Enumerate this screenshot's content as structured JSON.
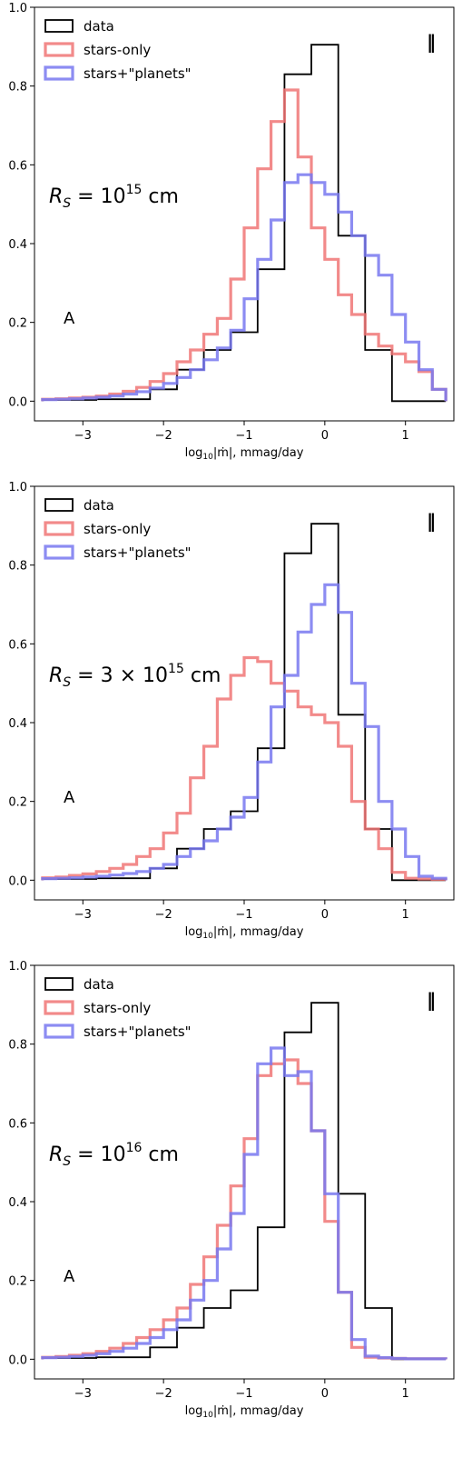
{
  "chart_data": [
    {
      "type": "histogram",
      "panel_marker": "‖",
      "annotation": {
        "base": "R",
        "sub": "S",
        "text": " = 10",
        "sup": "15",
        "unit": " cm"
      },
      "letter": "A",
      "xlabel": {
        "pre": "log",
        "sub": "10",
        "post": "|ṁ|, mmag/day"
      },
      "xlim": [
        -3.6,
        1.6
      ],
      "ylim": [
        -0.05,
        1.0
      ],
      "xticks": [
        {
          "v": -3,
          "label": "−3"
        },
        {
          "v": -2,
          "label": "−2"
        },
        {
          "v": -1,
          "label": "−1"
        },
        {
          "v": 0,
          "label": "0"
        },
        {
          "v": 1,
          "label": "1"
        }
      ],
      "yticks": [
        {
          "v": 0,
          "label": "0.0"
        },
        {
          "v": 0.2,
          "label": "0.2"
        },
        {
          "v": 0.4,
          "label": "0.4"
        },
        {
          "v": 0.6,
          "label": "0.6"
        },
        {
          "v": 0.8,
          "label": "0.8"
        },
        {
          "v": 1.0,
          "label": "1.0"
        }
      ],
      "legend_position": "top-left",
      "bin_edges": [
        -3.5,
        -2.833,
        -2.167,
        -1.833,
        -1.5,
        -1.167,
        -0.833,
        -0.5,
        -0.167,
        0.167,
        0.5,
        0.833,
        1.5
      ],
      "series": [
        {
          "name": "data",
          "color": "#000000",
          "edges": [
            -3.5,
            -2.833,
            -2.167,
            -1.833,
            -1.5,
            -1.167,
            -0.833,
            -0.5,
            -0.167,
            0.167,
            0.5,
            0.833,
            1.5
          ],
          "values": [
            0.003,
            0.005,
            0.03,
            0.08,
            0.13,
            0.175,
            0.335,
            0.83,
            0.905,
            0.42,
            0.13,
            0.0
          ]
        },
        {
          "name": "stars-only",
          "color": "#f07575",
          "edges": [
            -3.5,
            -3.333,
            -3.167,
            -3.0,
            -2.833,
            -2.667,
            -2.5,
            -2.333,
            -2.167,
            -2.0,
            -1.833,
            -1.667,
            -1.5,
            -1.333,
            -1.167,
            -1.0,
            -0.833,
            -0.667,
            -0.5,
            -0.333,
            -0.167,
            0.0,
            0.167,
            0.333,
            0.5,
            0.667,
            0.833,
            1.0,
            1.167,
            1.333,
            1.5
          ],
          "values": [
            0.005,
            0.006,
            0.008,
            0.01,
            0.013,
            0.018,
            0.025,
            0.035,
            0.05,
            0.07,
            0.1,
            0.13,
            0.17,
            0.21,
            0.31,
            0.44,
            0.59,
            0.71,
            0.79,
            0.62,
            0.44,
            0.36,
            0.27,
            0.22,
            0.17,
            0.14,
            0.12,
            0.1,
            0.075,
            0.03
          ]
        },
        {
          "name": "stars+\"planets\"",
          "color": "#7878f0",
          "edges": [
            -3.5,
            -3.333,
            -3.167,
            -3.0,
            -2.833,
            -2.667,
            -2.5,
            -2.333,
            -2.167,
            -2.0,
            -1.833,
            -1.667,
            -1.5,
            -1.333,
            -1.167,
            -1.0,
            -0.833,
            -0.667,
            -0.5,
            -0.333,
            -0.167,
            0.0,
            0.167,
            0.333,
            0.5,
            0.667,
            0.833,
            1.0,
            1.167,
            1.333,
            1.5
          ],
          "values": [
            0.004,
            0.005,
            0.006,
            0.008,
            0.01,
            0.013,
            0.018,
            0.024,
            0.033,
            0.045,
            0.06,
            0.08,
            0.105,
            0.135,
            0.18,
            0.26,
            0.36,
            0.46,
            0.555,
            0.575,
            0.555,
            0.525,
            0.48,
            0.42,
            0.37,
            0.32,
            0.22,
            0.15,
            0.08,
            0.03
          ]
        }
      ]
    },
    {
      "type": "histogram",
      "panel_marker": "‖",
      "annotation": {
        "base": "R",
        "sub": "S",
        "text": " = 3 × 10",
        "sup": "15",
        "unit": " cm"
      },
      "letter": "A",
      "xlabel": {
        "pre": "log",
        "sub": "10",
        "post": "|ṁ|, mmag/day"
      },
      "xlim": [
        -3.6,
        1.6
      ],
      "ylim": [
        -0.05,
        1.0
      ],
      "xticks": [
        {
          "v": -3,
          "label": "−3"
        },
        {
          "v": -2,
          "label": "−2"
        },
        {
          "v": -1,
          "label": "−1"
        },
        {
          "v": 0,
          "label": "0"
        },
        {
          "v": 1,
          "label": "1"
        }
      ],
      "yticks": [
        {
          "v": 0,
          "label": "0.0"
        },
        {
          "v": 0.2,
          "label": "0.2"
        },
        {
          "v": 0.4,
          "label": "0.4"
        },
        {
          "v": 0.6,
          "label": "0.6"
        },
        {
          "v": 0.8,
          "label": "0.8"
        },
        {
          "v": 1.0,
          "label": "1.0"
        }
      ],
      "legend_position": "top-left",
      "series": [
        {
          "name": "data",
          "color": "#000000",
          "edges": [
            -3.5,
            -2.833,
            -2.167,
            -1.833,
            -1.5,
            -1.167,
            -0.833,
            -0.5,
            -0.167,
            0.167,
            0.5,
            0.833,
            1.5
          ],
          "values": [
            0.003,
            0.005,
            0.03,
            0.08,
            0.13,
            0.175,
            0.335,
            0.83,
            0.905,
            0.42,
            0.13,
            0.0
          ]
        },
        {
          "name": "stars-only",
          "color": "#f07575",
          "edges": [
            -3.5,
            -3.333,
            -3.167,
            -3.0,
            -2.833,
            -2.667,
            -2.5,
            -2.333,
            -2.167,
            -2.0,
            -1.833,
            -1.667,
            -1.5,
            -1.333,
            -1.167,
            -1.0,
            -0.833,
            -0.667,
            -0.5,
            -0.333,
            -0.167,
            0.0,
            0.167,
            0.333,
            0.5,
            0.667,
            0.833,
            1.0,
            1.167,
            1.333,
            1.5
          ],
          "values": [
            0.006,
            0.008,
            0.012,
            0.016,
            0.022,
            0.03,
            0.04,
            0.06,
            0.08,
            0.12,
            0.17,
            0.26,
            0.34,
            0.46,
            0.52,
            0.565,
            0.555,
            0.5,
            0.48,
            0.44,
            0.42,
            0.4,
            0.34,
            0.2,
            0.13,
            0.08,
            0.02,
            0.005,
            0.003,
            0.002
          ]
        },
        {
          "name": "stars+\"planets\"",
          "color": "#7878f0",
          "edges": [
            -3.5,
            -3.333,
            -3.167,
            -3.0,
            -2.833,
            -2.667,
            -2.5,
            -2.333,
            -2.167,
            -2.0,
            -1.833,
            -1.667,
            -1.5,
            -1.333,
            -1.167,
            -1.0,
            -0.833,
            -0.667,
            -0.5,
            -0.333,
            -0.167,
            0.0,
            0.167,
            0.333,
            0.5,
            0.667,
            0.833,
            1.0,
            1.167,
            1.333,
            1.5
          ],
          "values": [
            0.004,
            0.005,
            0.006,
            0.008,
            0.01,
            0.013,
            0.017,
            0.022,
            0.03,
            0.04,
            0.06,
            0.08,
            0.1,
            0.13,
            0.16,
            0.21,
            0.3,
            0.44,
            0.52,
            0.63,
            0.7,
            0.75,
            0.68,
            0.5,
            0.39,
            0.2,
            0.13,
            0.06,
            0.01,
            0.005
          ]
        }
      ]
    },
    {
      "type": "histogram",
      "panel_marker": "‖",
      "annotation": {
        "base": "R",
        "sub": "S",
        "text": " = 10",
        "sup": "16",
        "unit": " cm"
      },
      "letter": "A",
      "xlabel": {
        "pre": "log",
        "sub": "10",
        "post": "|ṁ|, mmag/day"
      },
      "xlim": [
        -3.6,
        1.6
      ],
      "ylim": [
        -0.05,
        1.0
      ],
      "xticks": [
        {
          "v": -3,
          "label": "−3"
        },
        {
          "v": -2,
          "label": "−2"
        },
        {
          "v": -1,
          "label": "−1"
        },
        {
          "v": 0,
          "label": "0"
        },
        {
          "v": 1,
          "label": "1"
        }
      ],
      "yticks": [
        {
          "v": 0,
          "label": "0.0"
        },
        {
          "v": 0.2,
          "label": "0.2"
        },
        {
          "v": 0.4,
          "label": "0.4"
        },
        {
          "v": 0.6,
          "label": "0.6"
        },
        {
          "v": 0.8,
          "label": "0.8"
        },
        {
          "v": 1.0,
          "label": "1.0"
        }
      ],
      "legend_position": "top-left",
      "series": [
        {
          "name": "data",
          "color": "#000000",
          "edges": [
            -3.5,
            -2.833,
            -2.167,
            -1.833,
            -1.5,
            -1.167,
            -0.833,
            -0.5,
            -0.167,
            0.167,
            0.5,
            0.833,
            1.5
          ],
          "values": [
            0.003,
            0.005,
            0.03,
            0.08,
            0.13,
            0.175,
            0.335,
            0.83,
            0.905,
            0.42,
            0.13,
            0.0
          ]
        },
        {
          "name": "stars-only",
          "color": "#f07575",
          "edges": [
            -3.5,
            -3.333,
            -3.167,
            -3.0,
            -2.833,
            -2.667,
            -2.5,
            -2.333,
            -2.167,
            -2.0,
            -1.833,
            -1.667,
            -1.5,
            -1.333,
            -1.167,
            -1.0,
            -0.833,
            -0.667,
            -0.5,
            -0.333,
            -0.167,
            0.0,
            0.167,
            0.333,
            0.5,
            0.667,
            0.833,
            1.0,
            1.167,
            1.333,
            1.5
          ],
          "values": [
            0.005,
            0.007,
            0.01,
            0.014,
            0.02,
            0.028,
            0.04,
            0.055,
            0.075,
            0.1,
            0.13,
            0.19,
            0.26,
            0.34,
            0.44,
            0.56,
            0.72,
            0.75,
            0.76,
            0.7,
            0.58,
            0.35,
            0.17,
            0.03,
            0.005,
            0.003,
            0.002,
            0.001,
            0.001,
            0.001
          ]
        },
        {
          "name": "stars+\"planets\"",
          "color": "#7878f0",
          "edges": [
            -3.5,
            -3.333,
            -3.167,
            -3.0,
            -2.833,
            -2.667,
            -2.5,
            -2.333,
            -2.167,
            -2.0,
            -1.833,
            -1.667,
            -1.5,
            -1.333,
            -1.167,
            -1.0,
            -0.833,
            -0.667,
            -0.5,
            -0.333,
            -0.167,
            0.0,
            0.167,
            0.333,
            0.5,
            0.667,
            0.833,
            1.0,
            1.167,
            1.333,
            1.5
          ],
          "values": [
            0.004,
            0.005,
            0.007,
            0.01,
            0.014,
            0.02,
            0.028,
            0.04,
            0.055,
            0.075,
            0.1,
            0.15,
            0.2,
            0.28,
            0.37,
            0.52,
            0.75,
            0.79,
            0.72,
            0.73,
            0.58,
            0.42,
            0.17,
            0.05,
            0.008,
            0.004,
            0.002,
            0.001,
            0.001,
            0.001
          ]
        }
      ]
    }
  ]
}
